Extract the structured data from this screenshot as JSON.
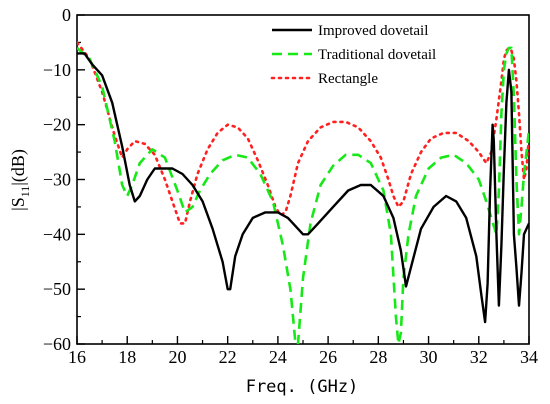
{
  "chart_data": {
    "type": "line",
    "title": "",
    "xlabel": "Freq.  (GHz)",
    "ylabel": "|S11|(dB)",
    "ylabel_main": "|S",
    "ylabel_sub": "11",
    "ylabel_tail": "|(dB)",
    "xlim": [
      16,
      34
    ],
    "ylim": [
      -60,
      0
    ],
    "xticks": [
      16,
      18,
      20,
      22,
      24,
      26,
      28,
      30,
      32,
      34
    ],
    "yticks": [
      0,
      -10,
      -20,
      -30,
      -40,
      -50,
      -60
    ],
    "grid": false,
    "legend_position": "top-right",
    "series": [
      {
        "name": "Improved dovetail",
        "color": "#000000",
        "dash": "solid",
        "x": [
          16.0,
          16.3,
          16.6,
          17.0,
          17.4,
          17.8,
          18.1,
          18.3,
          18.5,
          18.8,
          19.1,
          19.4,
          19.8,
          20.2,
          20.6,
          21.0,
          21.4,
          21.8,
          22.0,
          22.1,
          22.3,
          22.6,
          23.0,
          23.5,
          24.0,
          24.4,
          24.8,
          25.0,
          25.2,
          25.6,
          26.2,
          26.8,
          27.3,
          27.7,
          28.2,
          28.6,
          28.9,
          29.1,
          29.3,
          29.7,
          30.2,
          30.7,
          31.1,
          31.5,
          31.9,
          32.1,
          32.25,
          32.35,
          32.45,
          32.55,
          32.6,
          32.7,
          32.8,
          32.9,
          33.0,
          33.1,
          33.2,
          33.3,
          33.4,
          33.5,
          33.6,
          33.7,
          33.8,
          33.9,
          34.0
        ],
        "y": [
          -7,
          -7,
          -9,
          -11,
          -16,
          -24,
          -31,
          -34,
          -33,
          -30,
          -28,
          -28,
          -28,
          -29,
          -31,
          -34,
          -39,
          -45,
          -50,
          -50,
          -44,
          -40,
          -37,
          -36,
          -36,
          -37,
          -39,
          -40,
          -40,
          -38,
          -35,
          -32,
          -31,
          -31,
          -33,
          -37,
          -43,
          -49.5,
          -46,
          -39,
          -35,
          -33,
          -34,
          -37,
          -44,
          -51,
          -56,
          -49,
          -32,
          -20,
          -23,
          -40,
          -53,
          -42,
          -28,
          -16,
          -10,
          -14,
          -40,
          -46,
          -53,
          -47,
          -40,
          -39,
          -38
        ]
      },
      {
        "name": "Traditional dovetail",
        "color": "#17e817",
        "dash": "long",
        "x": [
          16.0,
          16.5,
          17.0,
          17.5,
          17.8,
          18.0,
          18.2,
          18.5,
          19.0,
          19.5,
          20.0,
          20.3,
          20.6,
          20.9,
          21.3,
          21.8,
          22.3,
          22.8,
          23.3,
          23.8,
          24.2,
          24.5,
          24.6,
          24.7,
          24.8,
          25.0,
          25.3,
          25.7,
          26.2,
          26.7,
          27.2,
          27.7,
          28.2,
          28.5,
          28.7,
          28.8,
          28.9,
          29.0,
          29.2,
          29.5,
          30.0,
          30.5,
          31.0,
          31.5,
          32.0,
          32.3,
          32.5,
          32.7,
          32.8,
          32.9,
          33.0,
          33.1,
          33.2,
          33.3,
          33.4,
          33.5,
          33.6,
          33.7,
          33.8,
          33.9,
          34.0
        ],
        "y": [
          -6,
          -8,
          -13,
          -23,
          -31,
          -33,
          -31,
          -27,
          -24.5,
          -26,
          -32,
          -36,
          -35,
          -32,
          -29,
          -26.5,
          -25.5,
          -26,
          -29,
          -34,
          -42,
          -50,
          -55,
          -60,
          -60,
          -48,
          -38,
          -31,
          -27.5,
          -25.5,
          -25.5,
          -27,
          -32,
          -40,
          -55,
          -60,
          -58,
          -48,
          -40,
          -33,
          -28,
          -26,
          -25.5,
          -27,
          -30,
          -34,
          -37,
          -40,
          -32,
          -18,
          -10,
          -7,
          -6,
          -6,
          -15,
          -30,
          -40,
          -35,
          -29,
          -25,
          -21
        ]
      },
      {
        "name": "Rectangle",
        "color": "#ff2020",
        "dash": "dot",
        "x": [
          16.0,
          16.5,
          17.0,
          17.5,
          17.8,
          18.0,
          18.3,
          18.7,
          19.1,
          19.5,
          19.8,
          20.1,
          20.3,
          20.5,
          20.8,
          21.2,
          21.6,
          22.0,
          22.4,
          22.8,
          23.2,
          23.6,
          23.9,
          24.1,
          24.3,
          24.5,
          24.8,
          25.2,
          25.7,
          26.2,
          26.7,
          27.2,
          27.7,
          28.1,
          28.4,
          28.6,
          28.8,
          29.0,
          29.3,
          29.7,
          30.1,
          30.6,
          31.1,
          31.6,
          32.0,
          32.3,
          32.5,
          32.7,
          32.9,
          33.0,
          33.1,
          33.2,
          33.3,
          33.4,
          33.5,
          33.6,
          33.7,
          33.8,
          33.9,
          34.0
        ],
        "y": [
          -5,
          -8,
          -14,
          -22,
          -26,
          -24.5,
          -23,
          -23.5,
          -25.5,
          -30,
          -34,
          -38,
          -38,
          -34,
          -29,
          -24.5,
          -21.5,
          -20,
          -20.5,
          -22.5,
          -26.5,
          -31,
          -35,
          -36.5,
          -36,
          -33,
          -27,
          -23,
          -20.5,
          -19.5,
          -19.5,
          -20.5,
          -23,
          -26,
          -30,
          -33,
          -35,
          -34,
          -29,
          -25,
          -22.5,
          -21.5,
          -21.5,
          -23,
          -25,
          -27,
          -25,
          -19,
          -12,
          -8,
          -6.5,
          -6,
          -6.5,
          -8,
          -12,
          -18,
          -25,
          -30,
          -28,
          -22
        ]
      }
    ]
  }
}
